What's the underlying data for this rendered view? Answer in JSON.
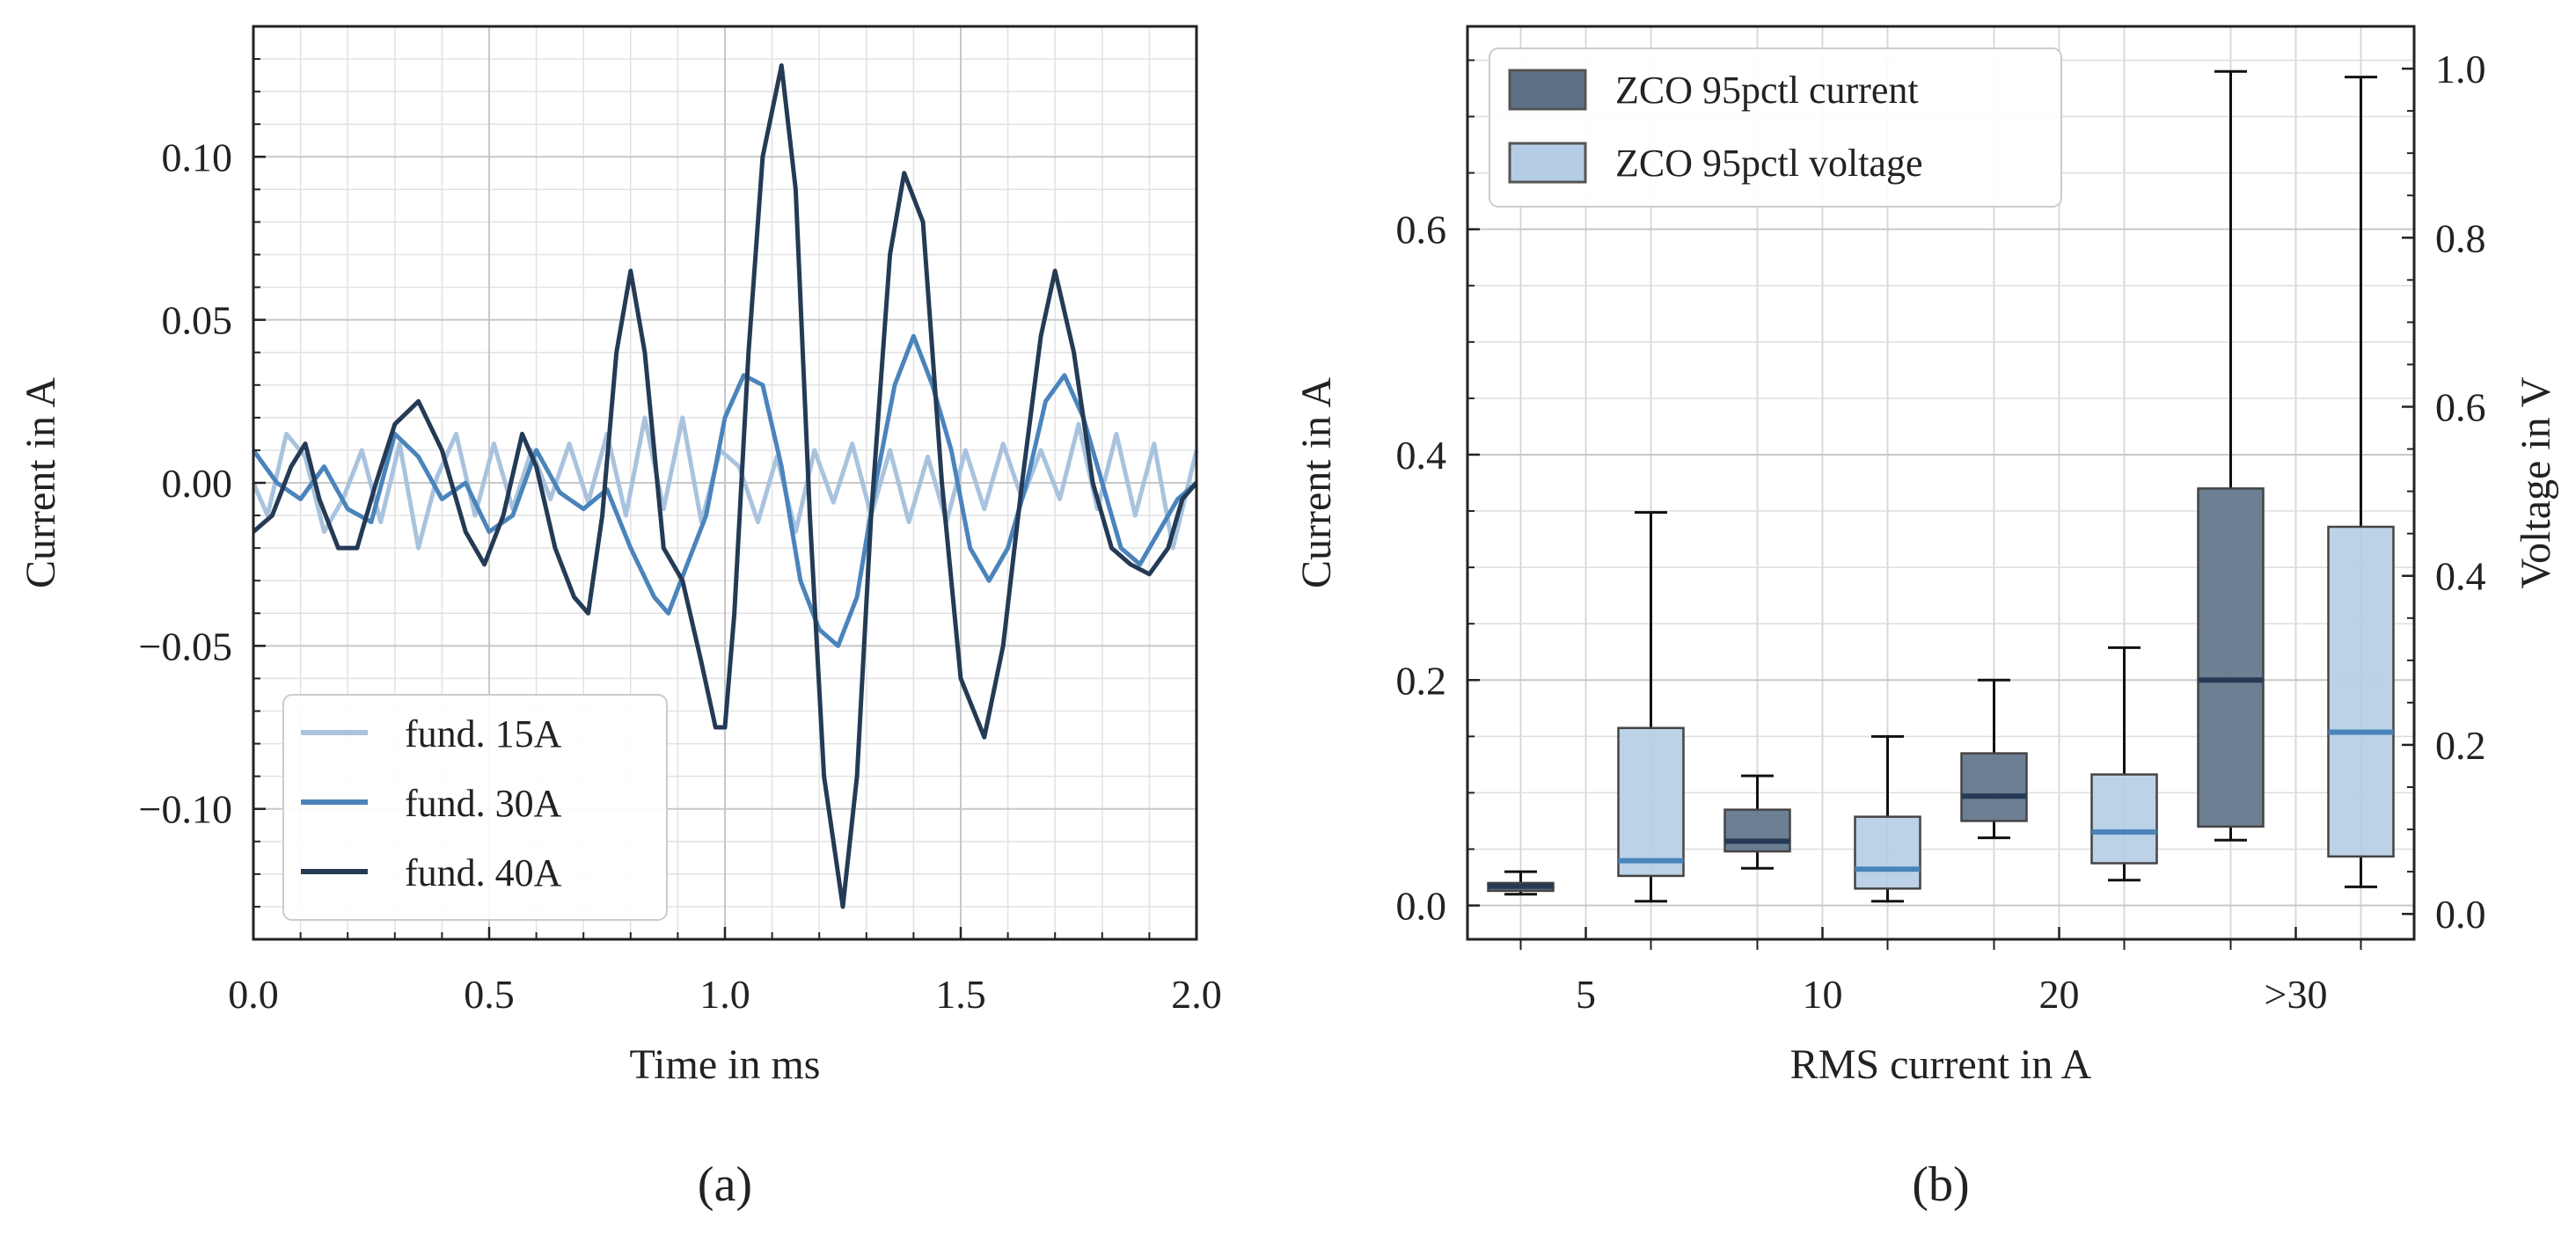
{
  "chart_data": [
    {
      "type": "line",
      "panel_label": "(a)",
      "xlabel": "Time in ms",
      "ylabel": "Current in A",
      "xlim": [
        0.0,
        2.0
      ],
      "ylim": [
        -0.14,
        0.14
      ],
      "xticks": [
        0.0,
        0.5,
        1.0,
        1.5,
        2.0
      ],
      "xtick_labels": [
        "0.0",
        "0.5",
        "1.0",
        "1.5",
        "2.0"
      ],
      "yticks": [
        -0.1,
        -0.05,
        0.0,
        0.05,
        0.1
      ],
      "ytick_labels": [
        "−0.10",
        "−0.05",
        "0.00",
        "0.05",
        "0.10"
      ],
      "grid": true,
      "legend_position": "lower-left",
      "series": [
        {
          "name": "fund. 15A",
          "color": "#a9c3de",
          "points": [
            [
              0.0,
              0.0
            ],
            [
              0.03,
              -0.01
            ],
            [
              0.07,
              0.015
            ],
            [
              0.11,
              0.008
            ],
            [
              0.15,
              -0.015
            ],
            [
              0.19,
              -0.005
            ],
            [
              0.23,
              0.01
            ],
            [
              0.27,
              -0.012
            ],
            [
              0.31,
              0.012
            ],
            [
              0.35,
              -0.02
            ],
            [
              0.39,
              0.002
            ],
            [
              0.43,
              0.015
            ],
            [
              0.47,
              -0.01
            ],
            [
              0.51,
              0.012
            ],
            [
              0.55,
              -0.008
            ],
            [
              0.59,
              0.01
            ],
            [
              0.63,
              -0.005
            ],
            [
              0.67,
              0.012
            ],
            [
              0.71,
              -0.006
            ],
            [
              0.75,
              0.015
            ],
            [
              0.79,
              -0.01
            ],
            [
              0.83,
              0.02
            ],
            [
              0.87,
              -0.008
            ],
            [
              0.91,
              0.02
            ],
            [
              0.95,
              -0.012
            ],
            [
              0.99,
              0.01
            ],
            [
              1.03,
              0.005
            ],
            [
              1.07,
              -0.012
            ],
            [
              1.11,
              0.008
            ],
            [
              1.15,
              -0.015
            ],
            [
              1.19,
              0.01
            ],
            [
              1.23,
              -0.006
            ],
            [
              1.27,
              0.012
            ],
            [
              1.31,
              -0.01
            ],
            [
              1.35,
              0.01
            ],
            [
              1.39,
              -0.012
            ],
            [
              1.43,
              0.008
            ],
            [
              1.47,
              -0.012
            ],
            [
              1.51,
              0.01
            ],
            [
              1.55,
              -0.008
            ],
            [
              1.59,
              0.012
            ],
            [
              1.63,
              -0.005
            ],
            [
              1.67,
              0.01
            ],
            [
              1.71,
              -0.005
            ],
            [
              1.75,
              0.018
            ],
            [
              1.79,
              -0.008
            ],
            [
              1.83,
              0.015
            ],
            [
              1.87,
              -0.01
            ],
            [
              1.91,
              0.012
            ],
            [
              1.95,
              -0.02
            ],
            [
              2.0,
              0.01
            ]
          ]
        },
        {
          "name": "fund. 30A",
          "color": "#4a84bb",
          "points": [
            [
              0.0,
              0.01
            ],
            [
              0.05,
              0.0
            ],
            [
              0.1,
              -0.005
            ],
            [
              0.15,
              0.005
            ],
            [
              0.2,
              -0.008
            ],
            [
              0.25,
              -0.012
            ],
            [
              0.3,
              0.015
            ],
            [
              0.35,
              0.008
            ],
            [
              0.4,
              -0.005
            ],
            [
              0.45,
              0.0
            ],
            [
              0.5,
              -0.015
            ],
            [
              0.55,
              -0.01
            ],
            [
              0.6,
              0.01
            ],
            [
              0.65,
              -0.003
            ],
            [
              0.7,
              -0.008
            ],
            [
              0.75,
              -0.002
            ],
            [
              0.8,
              -0.02
            ],
            [
              0.85,
              -0.035
            ],
            [
              0.88,
              -0.04
            ],
            [
              0.92,
              -0.025
            ],
            [
              0.96,
              -0.01
            ],
            [
              1.0,
              0.02
            ],
            [
              1.04,
              0.033
            ],
            [
              1.08,
              0.03
            ],
            [
              1.12,
              0.005
            ],
            [
              1.16,
              -0.03
            ],
            [
              1.2,
              -0.045
            ],
            [
              1.24,
              -0.05
            ],
            [
              1.28,
              -0.035
            ],
            [
              1.32,
              0.0
            ],
            [
              1.36,
              0.03
            ],
            [
              1.4,
              0.045
            ],
            [
              1.44,
              0.03
            ],
            [
              1.48,
              0.01
            ],
            [
              1.52,
              -0.02
            ],
            [
              1.56,
              -0.03
            ],
            [
              1.6,
              -0.02
            ],
            [
              1.64,
              0.0
            ],
            [
              1.68,
              0.025
            ],
            [
              1.72,
              0.033
            ],
            [
              1.76,
              0.02
            ],
            [
              1.8,
              0.0
            ],
            [
              1.84,
              -0.02
            ],
            [
              1.88,
              -0.025
            ],
            [
              1.92,
              -0.015
            ],
            [
              1.96,
              -0.005
            ],
            [
              2.0,
              0.0
            ]
          ]
        },
        {
          "name": "fund. 40A",
          "color": "#243a55",
          "points": [
            [
              0.0,
              -0.015
            ],
            [
              0.04,
              -0.01
            ],
            [
              0.08,
              0.005
            ],
            [
              0.11,
              0.012
            ],
            [
              0.14,
              -0.005
            ],
            [
              0.18,
              -0.02
            ],
            [
              0.22,
              -0.02
            ],
            [
              0.26,
              0.0
            ],
            [
              0.3,
              0.018
            ],
            [
              0.35,
              0.025
            ],
            [
              0.4,
              0.01
            ],
            [
              0.45,
              -0.015
            ],
            [
              0.49,
              -0.025
            ],
            [
              0.53,
              -0.01
            ],
            [
              0.57,
              0.015
            ],
            [
              0.6,
              0.005
            ],
            [
              0.64,
              -0.02
            ],
            [
              0.68,
              -0.035
            ],
            [
              0.71,
              -0.04
            ],
            [
              0.74,
              -0.01
            ],
            [
              0.77,
              0.04
            ],
            [
              0.8,
              0.065
            ],
            [
              0.83,
              0.04
            ],
            [
              0.87,
              -0.02
            ],
            [
              0.91,
              -0.03
            ],
            [
              0.95,
              -0.055
            ],
            [
              0.98,
              -0.075
            ],
            [
              1.0,
              -0.075
            ],
            [
              1.02,
              -0.04
            ],
            [
              1.05,
              0.04
            ],
            [
              1.08,
              0.1
            ],
            [
              1.12,
              0.128
            ],
            [
              1.15,
              0.09
            ],
            [
              1.18,
              -0.01
            ],
            [
              1.21,
              -0.09
            ],
            [
              1.25,
              -0.13
            ],
            [
              1.28,
              -0.09
            ],
            [
              1.31,
              -0.01
            ],
            [
              1.35,
              0.07
            ],
            [
              1.38,
              0.095
            ],
            [
              1.42,
              0.08
            ],
            [
              1.46,
              0.0
            ],
            [
              1.5,
              -0.06
            ],
            [
              1.55,
              -0.078
            ],
            [
              1.59,
              -0.05
            ],
            [
              1.63,
              0.0
            ],
            [
              1.67,
              0.045
            ],
            [
              1.7,
              0.065
            ],
            [
              1.74,
              0.04
            ],
            [
              1.78,
              0.0
            ],
            [
              1.82,
              -0.02
            ],
            [
              1.86,
              -0.025
            ],
            [
              1.9,
              -0.028
            ],
            [
              1.94,
              -0.02
            ],
            [
              1.97,
              -0.005
            ],
            [
              2.0,
              0.0
            ]
          ]
        }
      ]
    },
    {
      "type": "box",
      "panel_label": "(b)",
      "xlabel": "RMS current in A",
      "ylabel": "Current in A",
      "y2label": "Voltage in V",
      "categories": [
        "5",
        "10",
        "20",
        ">30"
      ],
      "ylim": [
        -0.03,
        0.78
      ],
      "y2lim": [
        -0.03,
        1.05
      ],
      "yticks": [
        0.0,
        0.2,
        0.4,
        0.6
      ],
      "ytick_labels": [
        "0.0",
        "0.2",
        "0.4",
        "0.6"
      ],
      "y2ticks": [
        0.0,
        0.2,
        0.4,
        0.6,
        0.8,
        1.0
      ],
      "y2tick_labels": [
        "0.0",
        "0.2",
        "0.4",
        "0.6",
        "0.8",
        "1.0"
      ],
      "grid": true,
      "legend_position": "top-left",
      "series": [
        {
          "name": "ZCO 95pctl current",
          "axis": "left",
          "fill_color": "#5d7186",
          "median_color": "#243a55",
          "boxes": [
            {
              "whislo": 0.01,
              "q1": 0.013,
              "med": 0.017,
              "q3": 0.02,
              "whishi": 0.03
            },
            {
              "whislo": 0.033,
              "q1": 0.048,
              "med": 0.057,
              "q3": 0.085,
              "whishi": 0.115
            },
            {
              "whislo": 0.06,
              "q1": 0.075,
              "med": 0.097,
              "q3": 0.135,
              "whishi": 0.2
            },
            {
              "whislo": 0.058,
              "q1": 0.07,
              "med": 0.2,
              "q3": 0.37,
              "whishi": 0.74
            }
          ]
        },
        {
          "name": "ZCO 95pctl voltage",
          "axis": "right",
          "fill_color": "#b5cde4",
          "median_color": "#4a84bb",
          "boxes": [
            {
              "whislo": 0.015,
              "q1": 0.045,
              "med": 0.063,
              "q3": 0.22,
              "whishi": 0.475
            },
            {
              "whislo": 0.015,
              "q1": 0.03,
              "med": 0.053,
              "q3": 0.115,
              "whishi": 0.21
            },
            {
              "whislo": 0.04,
              "q1": 0.06,
              "med": 0.097,
              "q3": 0.165,
              "whishi": 0.315
            },
            {
              "whislo": 0.032,
              "q1": 0.068,
              "med": 0.215,
              "q3": 0.458,
              "whishi": 0.99
            }
          ]
        }
      ]
    }
  ]
}
